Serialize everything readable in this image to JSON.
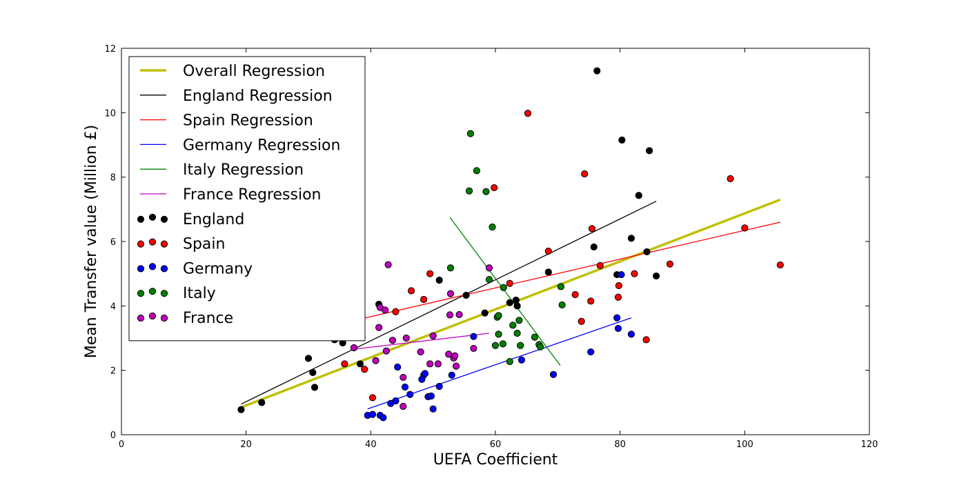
{
  "chart_data": {
    "type": "scatter",
    "title": "",
    "xlabel": "UEFA Coefficient",
    "ylabel": "Mean Transfer value (Million £)",
    "xlim": [
      0,
      120
    ],
    "ylim": [
      0,
      12
    ],
    "xticks": [
      0,
      20,
      40,
      60,
      80,
      100,
      120
    ],
    "yticks": [
      0,
      2,
      4,
      6,
      8,
      10,
      12
    ],
    "grid": false,
    "legend_position": "top-left",
    "regressions": [
      {
        "name": "Overall Regression",
        "color": "#bfbf00",
        "width": "thick",
        "x": [
          19.2,
          105.7
        ],
        "y": [
          0.85,
          7.3
        ]
      },
      {
        "name": "England Regression",
        "color": "#000000",
        "width": "thin",
        "x": [
          19.2,
          85.8
        ],
        "y": [
          0.95,
          7.25
        ]
      },
      {
        "name": "Spain Regression",
        "color": "#ff0000",
        "width": "thin",
        "x": [
          36.3,
          105.7
        ],
        "y": [
          3.5,
          6.6
        ]
      },
      {
        "name": "Germany Regression",
        "color": "#0000ff",
        "width": "thin",
        "x": [
          39.5,
          81.8
        ],
        "y": [
          0.8,
          3.63
        ]
      },
      {
        "name": "Italy Regression",
        "color": "#008000",
        "width": "thin",
        "x": [
          52.7,
          70.4
        ],
        "y": [
          6.75,
          2.15
        ]
      },
      {
        "name": "France Regression",
        "color": "#bf00bf",
        "width": "thin",
        "x": [
          37.0,
          59.0
        ],
        "y": [
          2.65,
          3.15
        ]
      }
    ],
    "series": [
      {
        "name": "England",
        "color": "#000000",
        "points": [
          [
            19.2,
            0.78
          ],
          [
            22.5,
            1.0
          ],
          [
            30.0,
            2.37
          ],
          [
            30.7,
            1.93
          ],
          [
            31.0,
            1.47
          ],
          [
            34.2,
            2.95
          ],
          [
            35.5,
            2.85
          ],
          [
            38.3,
            2.2
          ],
          [
            41.3,
            4.05
          ],
          [
            51.0,
            4.8
          ],
          [
            55.3,
            4.33
          ],
          [
            58.3,
            3.78
          ],
          [
            62.3,
            4.1
          ],
          [
            63.3,
            4.18
          ],
          [
            63.5,
            4.0
          ],
          [
            68.5,
            5.05
          ],
          [
            75.8,
            5.83
          ],
          [
            76.3,
            11.3
          ],
          [
            79.5,
            4.97
          ],
          [
            80.3,
            9.15
          ],
          [
            81.8,
            6.1
          ],
          [
            83.0,
            7.43
          ],
          [
            84.3,
            5.68
          ],
          [
            84.7,
            8.82
          ],
          [
            85.8,
            4.93
          ]
        ]
      },
      {
        "name": "Spain",
        "color": "#ff0000",
        "points": [
          [
            35.8,
            2.2
          ],
          [
            39.0,
            2.03
          ],
          [
            40.3,
            1.15
          ],
          [
            44.0,
            3.82
          ],
          [
            46.5,
            4.47
          ],
          [
            48.5,
            4.2
          ],
          [
            49.5,
            5.0
          ],
          [
            59.8,
            7.67
          ],
          [
            62.3,
            4.7
          ],
          [
            65.2,
            9.98
          ],
          [
            68.5,
            5.7
          ],
          [
            72.8,
            4.35
          ],
          [
            73.8,
            3.52
          ],
          [
            74.3,
            8.1
          ],
          [
            75.3,
            4.15
          ],
          [
            75.5,
            6.4
          ],
          [
            76.8,
            5.25
          ],
          [
            79.7,
            4.27
          ],
          [
            79.8,
            4.63
          ],
          [
            82.3,
            5.0
          ],
          [
            84.2,
            2.95
          ],
          [
            88.0,
            5.3
          ],
          [
            97.7,
            7.95
          ],
          [
            100.0,
            6.42
          ],
          [
            105.7,
            5.27
          ]
        ]
      },
      {
        "name": "Germany",
        "color": "#0000ff",
        "points": [
          [
            39.5,
            0.6
          ],
          [
            40.3,
            0.63
          ],
          [
            41.5,
            0.6
          ],
          [
            42.0,
            0.53
          ],
          [
            43.2,
            0.97
          ],
          [
            44.0,
            1.05
          ],
          [
            44.3,
            2.1
          ],
          [
            45.5,
            1.48
          ],
          [
            46.3,
            1.25
          ],
          [
            48.2,
            1.72
          ],
          [
            48.5,
            1.85
          ],
          [
            48.7,
            1.9
          ],
          [
            49.2,
            1.18
          ],
          [
            49.7,
            1.2
          ],
          [
            50.0,
            0.8
          ],
          [
            51.0,
            1.5
          ],
          [
            53.0,
            1.85
          ],
          [
            56.5,
            3.05
          ],
          [
            64.2,
            2.32
          ],
          [
            69.3,
            1.87
          ],
          [
            75.3,
            2.57
          ],
          [
            79.5,
            3.63
          ],
          [
            79.7,
            3.3
          ],
          [
            80.2,
            4.97
          ],
          [
            81.8,
            3.12
          ]
        ]
      },
      {
        "name": "Italy",
        "color": "#008000",
        "points": [
          [
            52.8,
            5.18
          ],
          [
            55.8,
            7.57
          ],
          [
            56.0,
            9.35
          ],
          [
            57.0,
            8.2
          ],
          [
            58.5,
            7.55
          ],
          [
            59.0,
            4.82
          ],
          [
            59.5,
            6.45
          ],
          [
            60.0,
            2.77
          ],
          [
            60.3,
            3.65
          ],
          [
            60.5,
            3.7
          ],
          [
            60.5,
            3.12
          ],
          [
            61.2,
            2.82
          ],
          [
            61.3,
            4.57
          ],
          [
            62.3,
            2.27
          ],
          [
            62.8,
            3.4
          ],
          [
            63.5,
            3.15
          ],
          [
            63.8,
            3.55
          ],
          [
            64.0,
            2.77
          ],
          [
            66.3,
            3.03
          ],
          [
            67.0,
            2.8
          ],
          [
            67.2,
            2.73
          ],
          [
            70.5,
            4.6
          ],
          [
            70.7,
            4.03
          ]
        ]
      },
      {
        "name": "France",
        "color": "#bf00bf",
        "points": [
          [
            37.3,
            2.7
          ],
          [
            40.8,
            2.3
          ],
          [
            41.3,
            3.33
          ],
          [
            41.5,
            3.95
          ],
          [
            42.3,
            3.87
          ],
          [
            42.5,
            2.6
          ],
          [
            42.8,
            5.28
          ],
          [
            43.5,
            2.93
          ],
          [
            45.2,
            1.78
          ],
          [
            45.7,
            3.0
          ],
          [
            48.0,
            2.57
          ],
          [
            49.5,
            2.2
          ],
          [
            50.0,
            3.07
          ],
          [
            50.8,
            2.2
          ],
          [
            52.5,
            2.5
          ],
          [
            52.7,
            3.72
          ],
          [
            52.8,
            4.38
          ],
          [
            53.3,
            2.38
          ],
          [
            53.5,
            2.45
          ],
          [
            53.7,
            2.13
          ],
          [
            54.2,
            3.73
          ],
          [
            45.2,
            0.88
          ],
          [
            56.5,
            2.68
          ],
          [
            59.0,
            5.18
          ]
        ]
      }
    ]
  }
}
